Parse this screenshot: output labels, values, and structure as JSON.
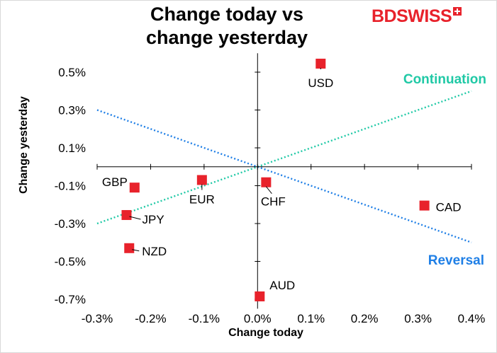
{
  "brand": {
    "part1": "BD",
    "part2": "SWISS"
  },
  "chart_data": {
    "type": "scatter",
    "title": [
      "Change today vs",
      "change yesterday"
    ],
    "xlabel": "Change today",
    "ylabel": "Change yesterday",
    "xlim": [
      -0.3,
      0.4
    ],
    "ylim": [
      -0.75,
      0.6
    ],
    "xticks": [
      -0.3,
      -0.2,
      -0.1,
      0.0,
      0.1,
      0.2,
      0.3,
      0.4
    ],
    "xtick_labels": [
      "-0.3%",
      "-0.2%",
      "-0.1%",
      "0.0%",
      "0.1%",
      "0.2%",
      "0.3%",
      "0.4%"
    ],
    "yticks": [
      0.5,
      0.3,
      0.1,
      -0.1,
      -0.3,
      -0.5,
      -0.7
    ],
    "ytick_labels": [
      "0.5%",
      "0.3%",
      "0.1%",
      "-0.1%",
      "-0.3%",
      "-0.5%",
      "-0.7%"
    ],
    "marker_color": "#e8222b",
    "points": [
      {
        "label": "USD",
        "x": 0.118,
        "y": 0.545
      },
      {
        "label": "EUR",
        "x": -0.104,
        "y": -0.07
      },
      {
        "label": "CHF",
        "x": 0.016,
        "y": -0.082
      },
      {
        "label": "GBP",
        "x": -0.23,
        "y": -0.11
      },
      {
        "label": "JPY",
        "x": -0.245,
        "y": -0.255
      },
      {
        "label": "NZD",
        "x": -0.24,
        "y": -0.43
      },
      {
        "label": "CAD",
        "x": 0.312,
        "y": -0.205
      },
      {
        "label": "AUD",
        "x": 0.004,
        "y": -0.685
      }
    ],
    "lines": [
      {
        "name": "Continuation",
        "color": "#20c9a6",
        "from": [
          -0.3,
          -0.3
        ],
        "to": [
          0.4,
          0.4
        ]
      },
      {
        "name": "Reversal",
        "color": "#1f7fe6",
        "from": [
          -0.3,
          0.3
        ],
        "to": [
          0.4,
          -0.4
        ]
      }
    ]
  }
}
